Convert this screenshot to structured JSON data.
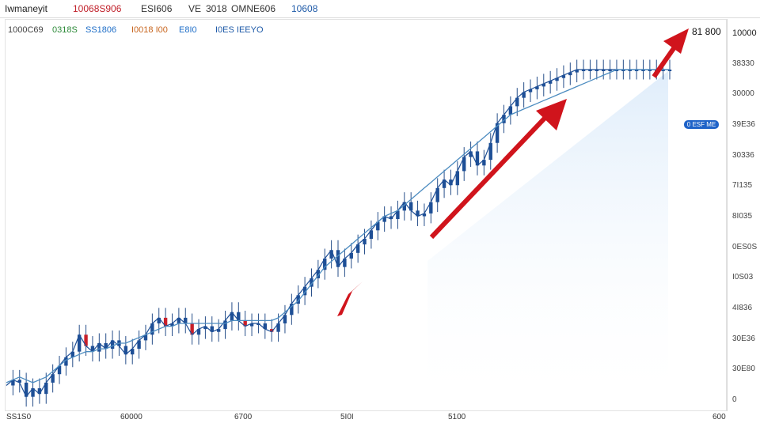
{
  "header": {
    "items": [
      {
        "text": "Iwmaneyit",
        "color": "#222222"
      },
      {
        "text": "10068S906",
        "color": "#c0202a"
      },
      {
        "text": "ESI606",
        "color": "#333333"
      },
      {
        "text": "VE",
        "color": "#333333"
      },
      {
        "text": "3018",
        "color": "#333333"
      },
      {
        "text": "OMNE606",
        "color": "#333333"
      },
      {
        "text": "10608",
        "color": "#1e5aa8"
      }
    ]
  },
  "legend": {
    "items": [
      {
        "text": "1000C69",
        "color": "#444444"
      },
      {
        "text": "0318S",
        "color": "#2e8b3a"
      },
      {
        "text": "SS1806",
        "color": "#1e6ec8"
      },
      {
        "text": "I0018 I00",
        "color": "#c8651e"
      },
      {
        "text": "E8I0",
        "color": "#1e6ec8"
      },
      {
        "text": "I0ES IEEYO",
        "color": "#1e5aa8"
      }
    ]
  },
  "price_label": "81 800",
  "badge_label": "0 ESF ME",
  "chart_data": {
    "type": "line",
    "title": "",
    "xlabel": "",
    "ylabel": "",
    "ylim": [
      0,
      12
    ],
    "y_ticks": [
      "10000",
      "38330",
      "30000",
      "39E36",
      "30336",
      "7I135",
      "8I035",
      "0ES0S",
      "I0S03",
      "4I836",
      "30E36",
      "30E80",
      "0"
    ],
    "x_ticks": [
      "SS1S0",
      "60000",
      "6700",
      "5I0I",
      "5100",
      "600"
    ],
    "x": [
      0,
      3,
      6,
      9,
      12,
      15,
      18,
      21,
      24,
      27,
      30,
      33,
      36,
      39,
      42,
      45,
      48,
      51,
      54,
      57,
      60,
      63,
      66,
      69,
      72,
      75,
      78,
      81,
      84,
      87,
      90,
      93,
      96,
      99,
      102,
      105,
      108,
      111,
      114,
      117,
      120,
      123,
      126,
      129,
      132,
      135,
      138,
      141,
      144,
      147,
      150,
      153,
      156,
      159,
      162,
      165,
      168,
      171,
      174,
      177,
      180,
      183,
      186,
      189,
      192,
      195,
      198,
      201,
      204,
      207,
      210,
      213,
      216,
      219,
      222,
      225,
      228,
      231,
      234,
      237,
      240,
      243,
      246,
      249,
      252,
      255,
      258,
      261,
      264,
      267,
      270,
      273,
      276,
      279,
      282,
      285,
      288,
      291,
      294,
      297,
      300
    ],
    "series": [
      {
        "values": [
          0.8,
          1.0,
          0.9,
          0.4,
          0.7,
          0.5,
          0.9,
          1.2,
          1.5,
          1.8,
          2.0,
          2.6,
          2.2,
          2.0,
          2.3,
          2.1,
          2.4,
          2.2,
          1.9,
          2.1,
          2.4,
          2.6,
          3.0,
          3.2,
          2.9,
          3.0,
          3.2,
          3.0,
          2.6,
          2.8,
          2.9,
          2.7,
          2.8,
          3.1,
          3.4,
          3.1,
          2.9,
          3.0,
          3.0,
          2.8,
          2.7,
          3.0,
          3.3,
          3.7,
          4.0,
          4.3,
          4.6,
          4.9,
          5.3,
          5.6,
          5.0,
          5.3,
          5.5,
          5.8,
          6.0,
          6.3,
          6.6,
          6.8,
          6.7,
          7.0,
          7.3,
          7.0,
          6.8,
          6.9,
          7.3,
          7.8,
          8.1,
          7.9,
          8.4,
          8.9,
          9.1,
          8.6,
          8.8,
          9.4,
          10.1,
          10.4,
          10.7,
          11.0,
          11.2,
          11.3,
          11.4,
          11.5,
          11.6,
          11.7,
          11.8,
          11.9,
          12.0,
          12.0,
          12.0,
          12.0,
          12.0,
          12.0,
          12.0,
          12.0,
          12.0,
          12.0,
          12.0,
          12.0,
          12.0,
          12.0,
          12.0
        ],
        "color": "#1e4f96"
      },
      {
        "values": [
          0.9,
          1.0,
          1.1,
          1.0,
          0.9,
          1.0,
          1.1,
          1.3,
          1.5,
          1.7,
          1.8,
          1.9,
          2.0,
          2.0,
          2.1,
          2.1,
          2.2,
          2.3,
          2.3,
          2.4,
          2.5,
          2.6,
          2.7,
          2.8,
          2.9,
          2.9,
          3.0,
          3.0,
          3.0,
          3.0,
          3.0,
          3.0,
          3.0,
          3.0,
          3.1,
          3.1,
          3.1,
          3.1,
          3.1,
          3.1,
          3.1,
          3.2,
          3.4,
          3.6,
          3.8,
          4.1,
          4.4,
          4.7,
          5.0,
          5.2,
          5.4,
          5.6,
          5.8,
          6.0,
          6.2,
          6.4,
          6.6,
          6.8,
          6.9,
          7.0,
          7.2,
          7.4,
          7.6,
          7.8,
          8.0,
          8.2,
          8.4,
          8.6,
          8.8,
          9.0,
          9.2,
          9.4,
          9.6,
          9.8,
          10.0,
          10.2,
          10.4,
          10.5,
          10.6,
          10.7,
          10.8,
          10.9,
          11.0,
          11.1,
          11.2,
          11.3,
          11.4,
          11.5,
          11.6,
          11.7,
          11.8,
          11.9,
          12.0,
          12.0,
          12.0,
          12.0,
          12.0,
          12.0,
          12.0,
          12.0,
          12.0
        ],
        "color": "#4c8cc0"
      }
    ],
    "grid": false,
    "legend": "top-left"
  }
}
